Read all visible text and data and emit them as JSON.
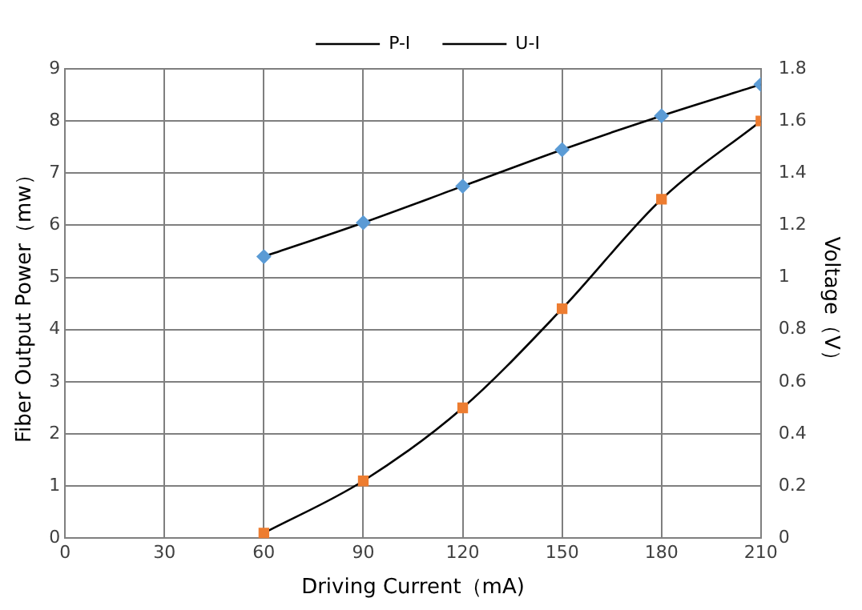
{
  "chart_data": {
    "type": "line",
    "xlabel": "Driving Current（mA)",
    "ylabel": "Fiber Output Power（mw）",
    "y2label": "Voltage（V）",
    "x": [
      60,
      90,
      120,
      150,
      180,
      210
    ],
    "series": [
      {
        "name": "P-I",
        "color": "#ed7d31",
        "marker": "square",
        "values": [
          0.1,
          1.1,
          2.5,
          4.4,
          6.5,
          8.0
        ]
      },
      {
        "name": "U-I",
        "color": "#5b9bd5",
        "marker": "diamond",
        "axis": "y2",
        "values": [
          1.08,
          1.21,
          1.35,
          1.49,
          1.62,
          1.74
        ]
      }
    ],
    "xlim": [
      0,
      210
    ],
    "xticks": [
      0,
      30,
      60,
      90,
      120,
      150,
      180,
      210
    ],
    "ylim": [
      0,
      9
    ],
    "yticks": [
      0,
      1,
      2,
      3,
      4,
      5,
      6,
      7,
      8,
      9
    ],
    "y2lim": [
      0,
      1.8
    ],
    "y2ticks": [
      0,
      0.2,
      0.4,
      0.6,
      0.8,
      1,
      1.2,
      1.4,
      1.6,
      1.8
    ],
    "grid": true,
    "legend": "top",
    "line_style": "solid"
  }
}
